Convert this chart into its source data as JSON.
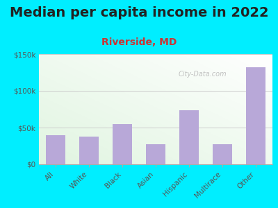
{
  "title": "Median per capita income in 2022",
  "subtitle": "Riverside, MD",
  "subtitle_color": "#cc3333",
  "categories": [
    "All",
    "White",
    "Black",
    "Asian",
    "Hispanic",
    "Multirace",
    "Other"
  ],
  "values": [
    40000,
    38000,
    55000,
    27000,
    74000,
    27000,
    132000
  ],
  "bar_color": "#b8a8d8",
  "ylim": [
    0,
    150000
  ],
  "yticks": [
    0,
    50000,
    100000,
    150000
  ],
  "ytick_labels": [
    "$0",
    "$50k",
    "$100k",
    "$150k"
  ],
  "bg_outer": "#00eeff",
  "watermark": "City-Data.com",
  "title_fontsize": 14,
  "subtitle_fontsize": 10,
  "title_color": "#222222"
}
